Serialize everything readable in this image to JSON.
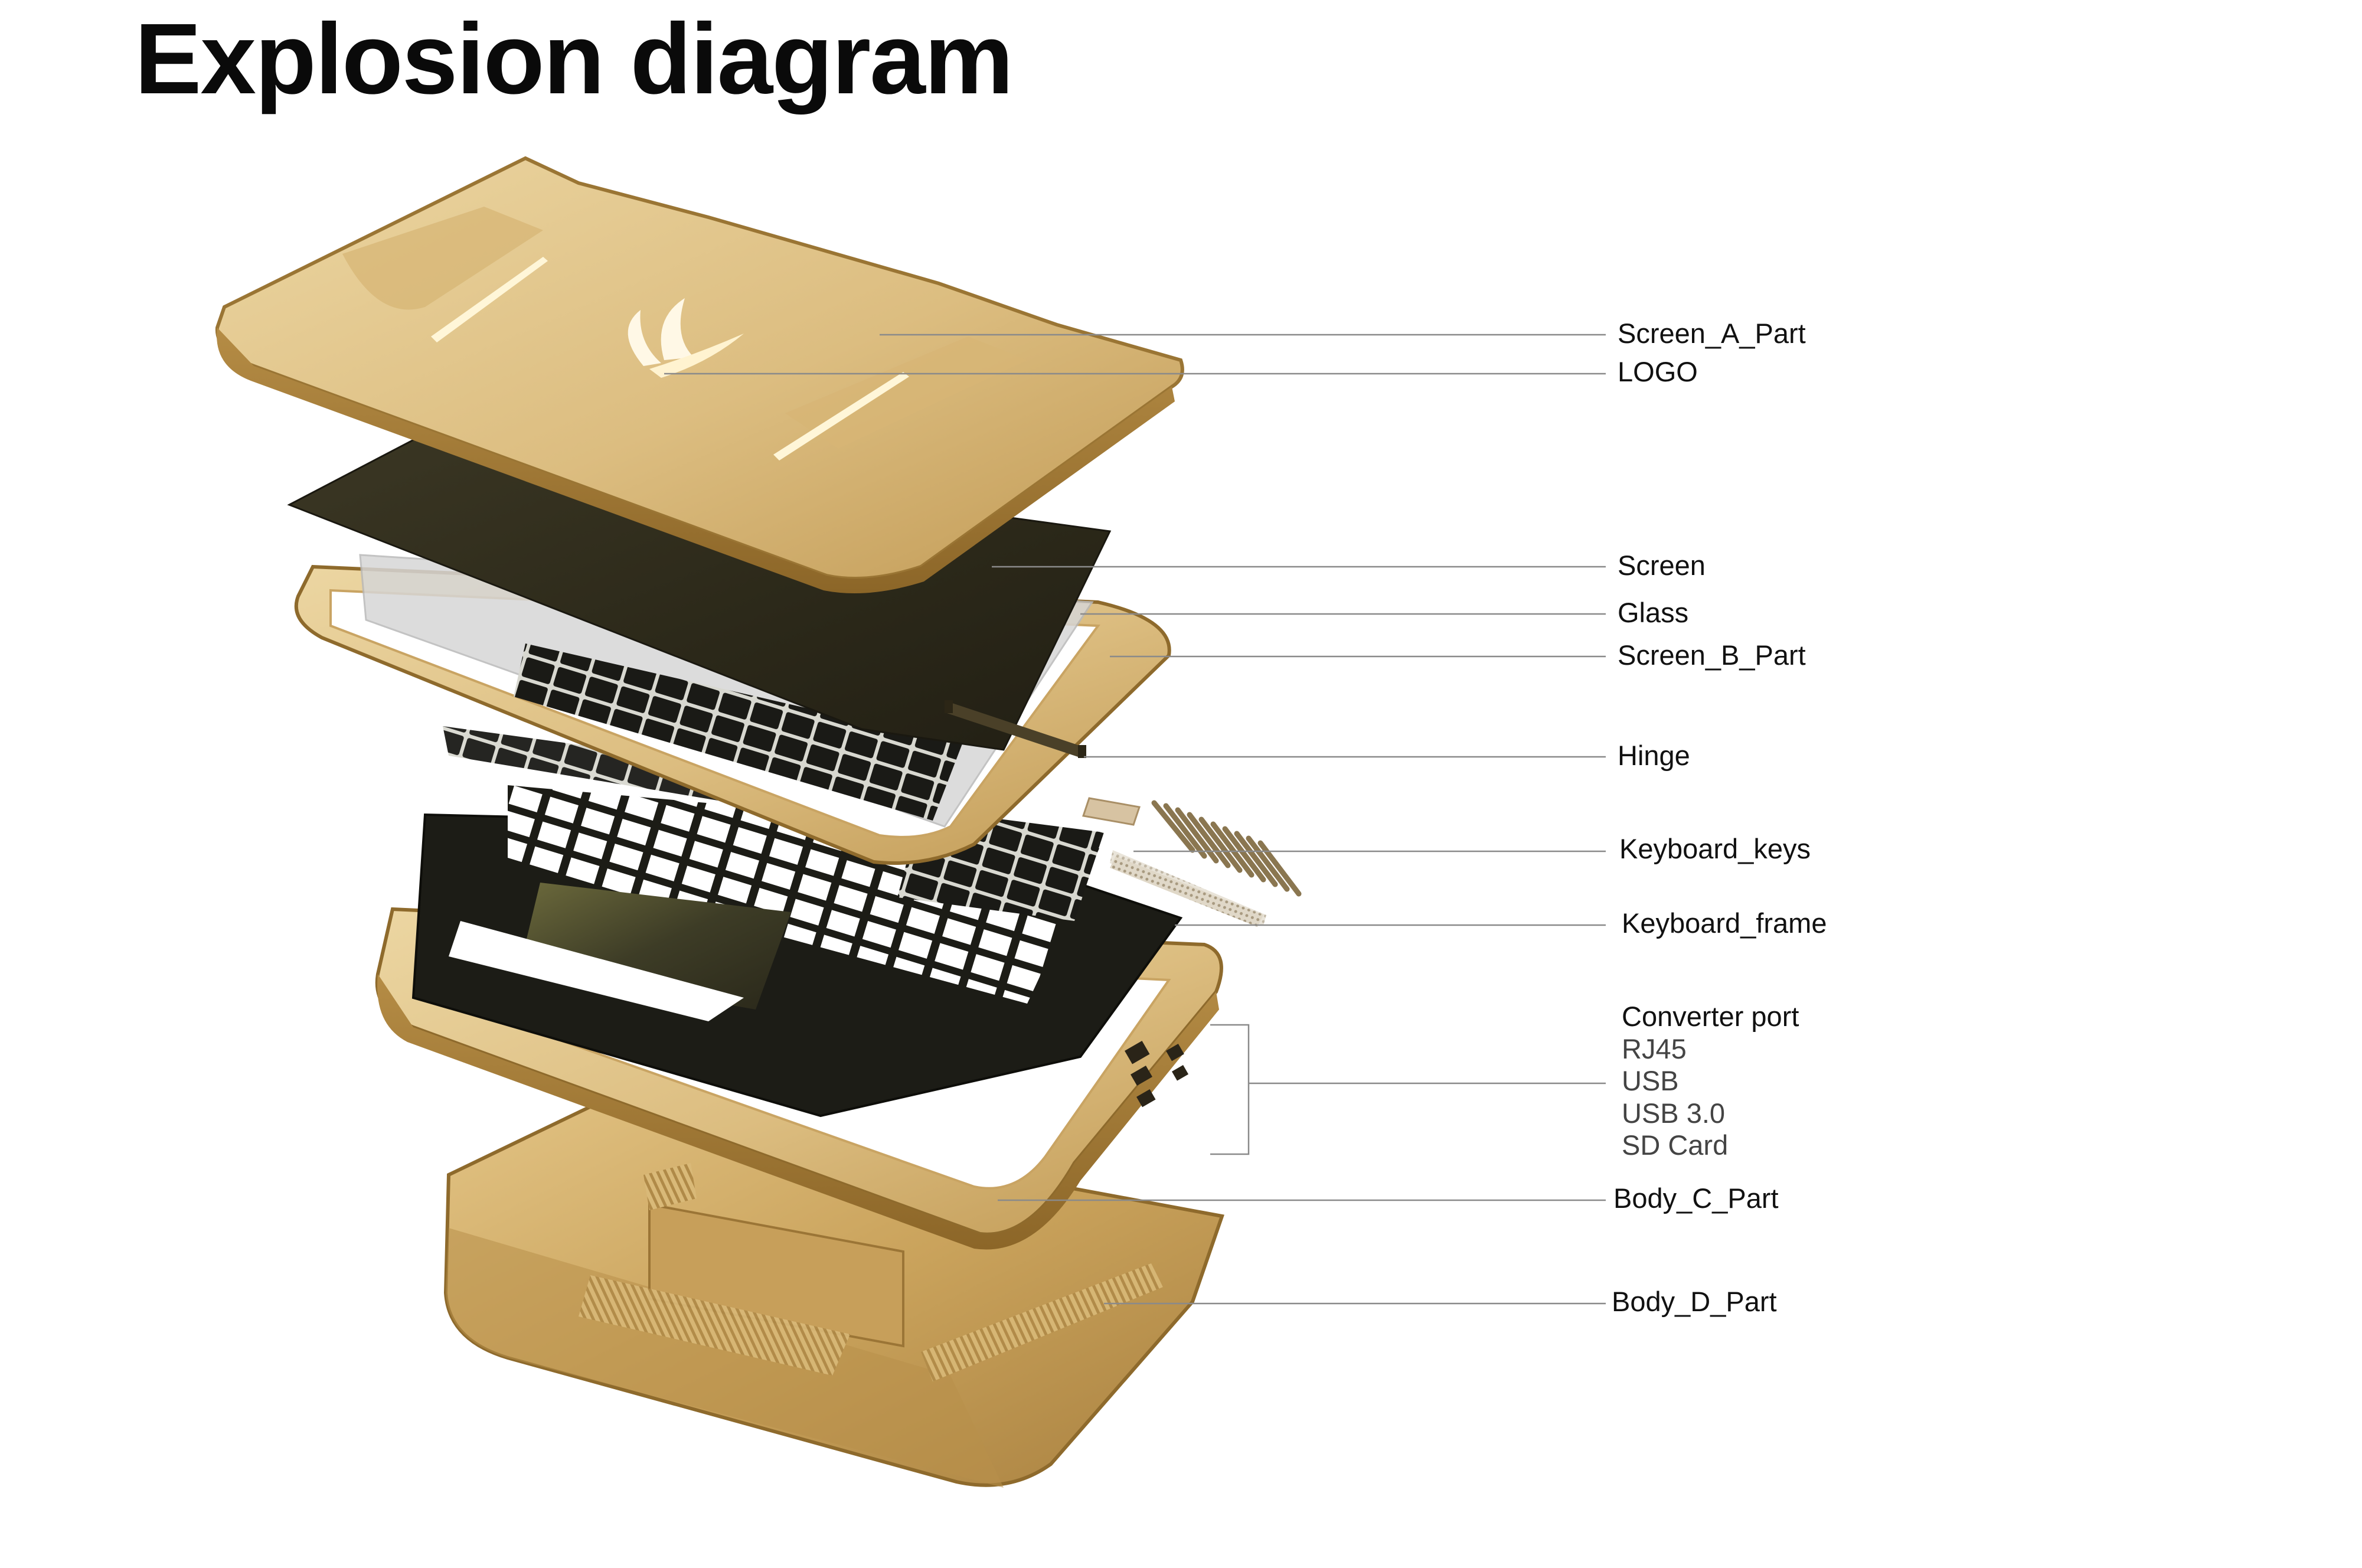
{
  "title": "Explosion diagram",
  "labels": {
    "screen_a_part": "Screen_A_Part",
    "logo": "LOGO",
    "screen": "Screen",
    "glass": "Glass",
    "screen_b_part": "Screen_B_Part",
    "hinge": "Hinge",
    "keyboard_keys": "Keyboard_keys",
    "keyboard_frame": "Keyboard_frame",
    "converter_port": "Converter port",
    "body_c_part": "Body_C_Part",
    "body_d_part": "Body_D_Part"
  },
  "converter_items": [
    "RJ45",
    "USB",
    "USB 3.0",
    "SD Card"
  ],
  "colors": {
    "gold_light": "#e8cf96",
    "gold_mid": "#cfa862",
    "gold_dark": "#9c7536",
    "screen_dark": "#2e2a1c",
    "keyboard_black": "#1c1c16",
    "leader_line": "#8a8a8a"
  }
}
